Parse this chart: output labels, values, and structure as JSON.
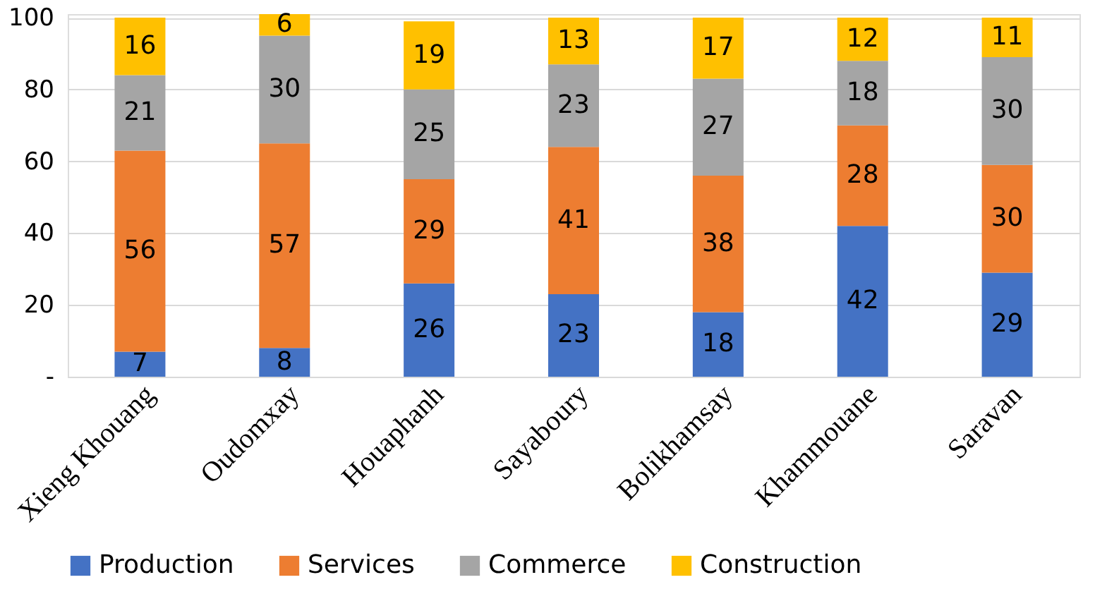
{
  "chart_data": {
    "type": "bar",
    "stacked": true,
    "categories": [
      "Xieng Khouang",
      "Oudomxay",
      "Houaphanh",
      "Sayaboury",
      "Bolikhamsay",
      "Khammouane",
      "Saravan"
    ],
    "series": [
      {
        "name": "Production",
        "color": "#4472c4",
        "values": [
          7,
          8,
          26,
          23,
          18,
          42,
          29
        ]
      },
      {
        "name": "Services",
        "color": "#ed7d31",
        "values": [
          56,
          57,
          29,
          41,
          38,
          28,
          30
        ]
      },
      {
        "name": "Commerce",
        "color": "#a5a5a5",
        "values": [
          21,
          30,
          25,
          23,
          27,
          18,
          30
        ]
      },
      {
        "name": "Construction",
        "color": "#ffc000",
        "values": [
          16,
          6,
          19,
          13,
          17,
          12,
          11
        ]
      }
    ],
    "ylim": [
      0,
      101
    ],
    "yticks": [
      {
        "value": 0,
        "label": "-"
      },
      20,
      40,
      60,
      80,
      100
    ],
    "grid": "y",
    "legend": "bottom",
    "data_labels": true
  }
}
